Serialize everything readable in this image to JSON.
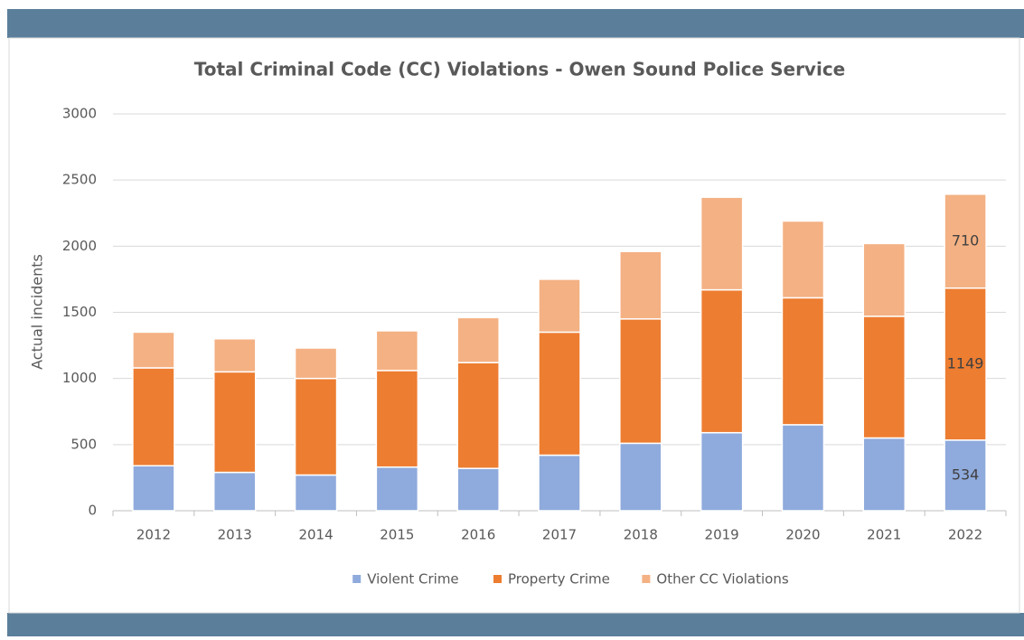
{
  "chart_data": {
    "type": "stacked_bar",
    "title": "Total Criminal Code (CC) Violations - Owen Sound Police Service",
    "y_label": "Actual incidents",
    "categories": [
      "2012",
      "2013",
      "2014",
      "2015",
      "2016",
      "2017",
      "2018",
      "2019",
      "2020",
      "2021",
      "2022"
    ],
    "series": [
      {
        "name": "Violent Crime",
        "color": "#8faadc",
        "values": [
          340,
          290,
          270,
          330,
          320,
          420,
          510,
          590,
          650,
          550,
          534
        ]
      },
      {
        "name": "Property Crime",
        "color": "#ed7d31",
        "values": [
          740,
          760,
          730,
          730,
          800,
          930,
          940,
          1080,
          960,
          920,
          1149
        ]
      },
      {
        "name": "Other CC Violations",
        "color": "#f4b183",
        "values": [
          270,
          250,
          230,
          300,
          340,
          400,
          510,
          700,
          580,
          550,
          710
        ]
      }
    ],
    "ylim": [
      0,
      3000
    ],
    "yticks": [
      0,
      500,
      1000,
      1500,
      2000,
      2500,
      3000
    ],
    "grid": true,
    "legend": "bottom"
  }
}
